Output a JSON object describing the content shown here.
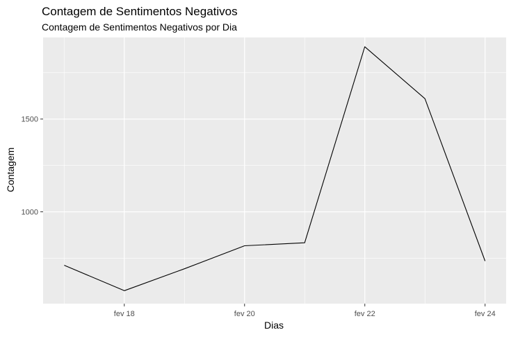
{
  "chart_data": {
    "type": "line",
    "title": "Contagem de Sentimentos Negativos",
    "subtitle": "Contagem de Sentimentos Negativos por Dia",
    "xlabel": "Dias",
    "ylabel": "Contagem",
    "x": [
      "2024-02-17",
      "2024-02-18",
      "2024-02-19",
      "2024-02-20",
      "2024-02-21",
      "2024-02-22",
      "2024-02-23",
      "2024-02-24"
    ],
    "values": [
      712,
      575,
      693,
      817,
      833,
      1890,
      1610,
      735
    ],
    "xlim": [
      "2024-02-16.65",
      "2024-02-24.35"
    ],
    "ylim": [
      505,
      1940
    ],
    "x_ticks": [
      {
        "date": "2024-02-18",
        "label": "fev 18"
      },
      {
        "date": "2024-02-20",
        "label": "fev 20"
      },
      {
        "date": "2024-02-22",
        "label": "fev 22"
      },
      {
        "date": "2024-02-24",
        "label": "fev 24"
      }
    ],
    "x_minor_ticks": [
      "2024-02-17",
      "2024-02-19",
      "2024-02-21",
      "2024-02-23"
    ],
    "y_ticks": [
      1000,
      1500
    ],
    "y_minor_ticks": [
      750,
      1250,
      1750
    ],
    "grid": true,
    "legend": "none",
    "colors": {
      "panel": "#ebebeb",
      "grid": "#ffffff",
      "line": "#000000",
      "tick_label": "#4d4d4d",
      "text": "#000000"
    }
  }
}
